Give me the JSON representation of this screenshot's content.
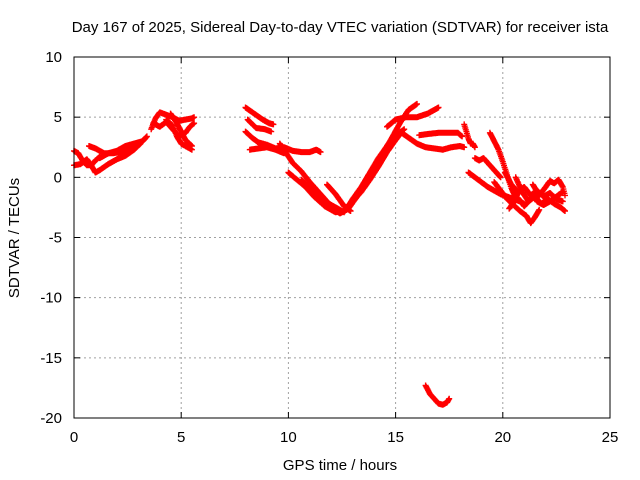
{
  "chart_data": {
    "type": "scatter",
    "title": "Day 167 of 2025, Sidereal Day-to-day VTEC variation (SDTVAR) for receiver ista",
    "xlabel": "GPS time / hours",
    "ylabel": "SDTVAR / TECUs",
    "xlim": [
      0,
      25
    ],
    "ylim": [
      -20,
      10
    ],
    "xticks": [
      "0",
      "5",
      "10",
      "15",
      "20",
      "25"
    ],
    "yticks": [
      "10",
      "5",
      "0",
      "-5",
      "-10",
      "-15",
      "-20"
    ],
    "grid": true,
    "marker": "plus",
    "color": "#ff0000",
    "segments": [
      {
        "name": "arc-01",
        "points": [
          [
            0.0,
            2.2
          ],
          [
            0.2,
            2.0
          ],
          [
            0.4,
            1.4
          ],
          [
            0.6,
            1.0
          ],
          [
            0.8,
            1.0
          ],
          [
            1.0,
            1.4
          ],
          [
            1.2,
            1.7
          ]
        ]
      },
      {
        "name": "arc-02",
        "points": [
          [
            0.0,
            1.0
          ],
          [
            0.3,
            1.1
          ],
          [
            0.6,
            1.5
          ],
          [
            0.8,
            1.0
          ],
          [
            1.0,
            0.4
          ],
          [
            1.2,
            0.6
          ],
          [
            1.6,
            1.1
          ],
          [
            2.0,
            1.5
          ],
          [
            2.4,
            1.8
          ],
          [
            2.8,
            2.3
          ],
          [
            3.1,
            2.8
          ]
        ]
      },
      {
        "name": "arc-03",
        "points": [
          [
            0.7,
            2.6
          ],
          [
            1.0,
            2.4
          ],
          [
            1.4,
            2.0
          ],
          [
            1.8,
            2.0
          ],
          [
            2.2,
            2.1
          ],
          [
            2.6,
            2.3
          ],
          [
            3.0,
            2.7
          ],
          [
            3.3,
            3.2
          ]
        ]
      },
      {
        "name": "arc-04",
        "points": [
          [
            1.2,
            1.6
          ],
          [
            1.6,
            2.0
          ],
          [
            2.0,
            2.2
          ],
          [
            2.4,
            2.6
          ],
          [
            2.8,
            2.8
          ],
          [
            3.2,
            3.0
          ],
          [
            3.4,
            3.4
          ]
        ]
      },
      {
        "name": "arc-05",
        "points": [
          [
            3.6,
            4.0
          ],
          [
            3.8,
            4.9
          ],
          [
            4.0,
            5.4
          ],
          [
            4.3,
            5.2
          ],
          [
            4.6,
            5.0
          ],
          [
            4.9,
            4.7
          ],
          [
            5.2,
            4.8
          ],
          [
            5.5,
            4.9
          ],
          [
            5.6,
            5.0
          ]
        ]
      },
      {
        "name": "arc-06",
        "points": [
          [
            3.7,
            4.5
          ],
          [
            4.0,
            4.2
          ],
          [
            4.3,
            4.6
          ],
          [
            4.6,
            4.0
          ],
          [
            4.9,
            3.4
          ],
          [
            5.2,
            3.7
          ],
          [
            5.4,
            4.2
          ],
          [
            5.6,
            4.5
          ]
        ]
      },
      {
        "name": "arc-07",
        "points": [
          [
            4.3,
            4.8
          ],
          [
            4.6,
            4.3
          ],
          [
            4.8,
            3.4
          ],
          [
            5.0,
            2.8
          ],
          [
            5.3,
            2.5
          ],
          [
            5.5,
            2.3
          ]
        ]
      },
      {
        "name": "arc-08",
        "points": [
          [
            4.5,
            5.3
          ],
          [
            4.8,
            4.5
          ],
          [
            5.0,
            3.8
          ],
          [
            5.2,
            3.1
          ],
          [
            5.5,
            2.6
          ]
        ]
      },
      {
        "name": "arc-09",
        "points": [
          [
            8.0,
            5.8
          ],
          [
            8.4,
            5.3
          ],
          [
            8.8,
            4.8
          ],
          [
            9.1,
            4.5
          ],
          [
            9.3,
            4.4
          ]
        ]
      },
      {
        "name": "arc-10",
        "points": [
          [
            8.1,
            4.8
          ],
          [
            8.5,
            4.1
          ],
          [
            8.9,
            4.0
          ],
          [
            9.2,
            3.8
          ]
        ]
      },
      {
        "name": "arc-11",
        "points": [
          [
            8.0,
            3.8
          ],
          [
            8.3,
            3.3
          ],
          [
            8.6,
            2.9
          ],
          [
            9.0,
            2.7
          ],
          [
            9.4,
            2.4
          ],
          [
            9.8,
            2.5
          ],
          [
            10.2,
            2.2
          ],
          [
            10.6,
            2.1
          ],
          [
            11.0,
            2.1
          ],
          [
            11.3,
            2.3
          ],
          [
            11.5,
            2.1
          ]
        ]
      },
      {
        "name": "arc-12",
        "points": [
          [
            8.2,
            2.3
          ],
          [
            8.6,
            2.4
          ],
          [
            9.0,
            2.5
          ],
          [
            9.4,
            2.3
          ],
          [
            9.8,
            2.0
          ]
        ]
      },
      {
        "name": "arc-13",
        "points": [
          [
            9.6,
            2.8
          ],
          [
            9.9,
            2.0
          ],
          [
            10.2,
            1.2
          ],
          [
            10.6,
            0.5
          ],
          [
            11.0,
            -0.4
          ],
          [
            11.5,
            -1.4
          ],
          [
            12.0,
            -2.4
          ],
          [
            12.4,
            -3.0
          ],
          [
            12.8,
            -2.6
          ],
          [
            13.2,
            -1.6
          ],
          [
            13.6,
            -0.4
          ],
          [
            14.0,
            0.8
          ],
          [
            14.4,
            2.0
          ],
          [
            14.8,
            3.2
          ],
          [
            15.2,
            4.5
          ],
          [
            15.6,
            5.6
          ],
          [
            16.0,
            6.1
          ]
        ]
      },
      {
        "name": "arc-14",
        "points": [
          [
            10.0,
            0.4
          ],
          [
            10.4,
            -0.2
          ],
          [
            10.8,
            -0.8
          ],
          [
            11.2,
            -1.6
          ],
          [
            11.7,
            -2.4
          ],
          [
            12.2,
            -2.9
          ],
          [
            12.6,
            -2.8
          ],
          [
            13.0,
            -2.0
          ],
          [
            13.4,
            -1.2
          ],
          [
            13.8,
            -0.2
          ],
          [
            14.2,
            0.9
          ],
          [
            14.6,
            2.1
          ],
          [
            15.0,
            3.1
          ],
          [
            15.3,
            3.8
          ]
        ]
      },
      {
        "name": "arc-15",
        "points": [
          [
            10.6,
            -0.2
          ],
          [
            11.0,
            -0.9
          ],
          [
            11.4,
            -1.6
          ],
          [
            11.8,
            -2.1
          ],
          [
            12.2,
            -2.5
          ],
          [
            12.6,
            -2.9
          ],
          [
            13.0,
            -1.8
          ],
          [
            13.4,
            -0.8
          ],
          [
            13.8,
            0.4
          ],
          [
            14.2,
            1.6
          ],
          [
            14.6,
            2.6
          ],
          [
            15.0,
            3.4
          ],
          [
            15.4,
            4.0
          ]
        ]
      },
      {
        "name": "arc-16",
        "points": [
          [
            11.8,
            -0.6
          ],
          [
            12.2,
            -1.4
          ],
          [
            12.6,
            -2.4
          ],
          [
            12.9,
            -2.8
          ]
        ]
      },
      {
        "name": "arc-17",
        "points": [
          [
            14.6,
            4.2
          ],
          [
            15.0,
            4.8
          ],
          [
            15.5,
            5.0
          ],
          [
            16.0,
            5.0
          ],
          [
            16.5,
            5.3
          ],
          [
            17.0,
            5.8
          ]
        ]
      },
      {
        "name": "arc-18",
        "points": [
          [
            15.2,
            3.8
          ],
          [
            15.6,
            3.3
          ],
          [
            16.0,
            2.8
          ],
          [
            16.4,
            2.5
          ],
          [
            16.8,
            2.4
          ],
          [
            17.2,
            2.3
          ],
          [
            17.6,
            2.5
          ],
          [
            18.0,
            2.6
          ],
          [
            18.2,
            2.5
          ]
        ]
      },
      {
        "name": "arc-19",
        "points": [
          [
            16.1,
            3.5
          ],
          [
            16.5,
            3.6
          ],
          [
            17.0,
            3.7
          ],
          [
            17.5,
            3.7
          ],
          [
            17.9,
            3.7
          ],
          [
            18.1,
            3.4
          ]
        ]
      },
      {
        "name": "arc-20",
        "points": [
          [
            16.4,
            -17.3
          ],
          [
            16.6,
            -18.0
          ],
          [
            16.8,
            -18.4
          ],
          [
            17.0,
            -18.8
          ],
          [
            17.2,
            -18.9
          ],
          [
            17.4,
            -18.7
          ],
          [
            17.5,
            -18.4
          ]
        ]
      },
      {
        "name": "arc-21",
        "points": [
          [
            18.2,
            4.4
          ],
          [
            18.3,
            3.8
          ],
          [
            18.4,
            3.2
          ],
          [
            18.5,
            2.8
          ],
          [
            18.6,
            2.8
          ],
          [
            18.7,
            2.5
          ]
        ]
      },
      {
        "name": "arc-22",
        "points": [
          [
            18.7,
            1.6
          ],
          [
            18.9,
            1.4
          ],
          [
            19.1,
            1.6
          ],
          [
            19.3,
            1.2
          ],
          [
            19.5,
            0.8
          ],
          [
            19.7,
            0.4
          ],
          [
            19.9,
            0.0
          ]
        ]
      },
      {
        "name": "arc-23",
        "points": [
          [
            18.4,
            0.4
          ],
          [
            18.7,
            0.0
          ],
          [
            19.0,
            -0.4
          ],
          [
            19.3,
            -0.8
          ],
          [
            19.6,
            -1.1
          ],
          [
            19.9,
            -1.4
          ],
          [
            20.2,
            -1.6
          ],
          [
            20.5,
            -1.8
          ],
          [
            20.8,
            -2.0
          ],
          [
            21.0,
            -2.2
          ]
        ]
      },
      {
        "name": "arc-24",
        "points": [
          [
            19.4,
            3.7
          ],
          [
            19.6,
            3.0
          ],
          [
            19.8,
            2.3
          ],
          [
            20.0,
            1.3
          ],
          [
            20.2,
            0.2
          ],
          [
            20.4,
            -0.9
          ],
          [
            20.6,
            -1.7
          ],
          [
            20.8,
            -1.0
          ]
        ]
      },
      {
        "name": "arc-25",
        "points": [
          [
            19.6,
            -0.4
          ],
          [
            19.9,
            -1.1
          ],
          [
            20.2,
            -1.8
          ],
          [
            20.5,
            -2.3
          ],
          [
            20.8,
            -2.8
          ],
          [
            21.1,
            -3.2
          ],
          [
            21.3,
            -3.8
          ],
          [
            21.5,
            -3.3
          ],
          [
            21.7,
            -2.7
          ]
        ]
      },
      {
        "name": "arc-26",
        "points": [
          [
            20.1,
            0.4
          ],
          [
            20.4,
            -0.6
          ],
          [
            20.7,
            -1.2
          ],
          [
            21.0,
            -0.8
          ],
          [
            21.3,
            -1.5
          ],
          [
            21.6,
            -1.1
          ],
          [
            21.9,
            -1.6
          ],
          [
            22.2,
            -1.3
          ],
          [
            22.5,
            -1.8
          ],
          [
            22.8,
            -2.0
          ]
        ]
      },
      {
        "name": "arc-27",
        "points": [
          [
            20.6,
            0.0
          ],
          [
            20.9,
            -1.2
          ],
          [
            21.2,
            -2.0
          ],
          [
            21.5,
            -1.6
          ],
          [
            21.8,
            -2.2
          ],
          [
            22.1,
            -1.8
          ],
          [
            22.4,
            -2.2
          ],
          [
            22.7,
            -2.5
          ],
          [
            22.9,
            -2.8
          ]
        ]
      },
      {
        "name": "arc-28",
        "points": [
          [
            21.4,
            -0.6
          ],
          [
            21.7,
            -1.5
          ],
          [
            22.0,
            -0.8
          ],
          [
            22.2,
            -0.3
          ],
          [
            22.4,
            -0.5
          ],
          [
            22.6,
            -0.2
          ],
          [
            22.8,
            -0.8
          ],
          [
            22.9,
            -1.5
          ]
        ]
      },
      {
        "name": "arc-29",
        "points": [
          [
            20.3,
            -2.6
          ],
          [
            20.5,
            -2.1
          ],
          [
            20.7,
            -1.7
          ],
          [
            21.0,
            -2.4
          ],
          [
            21.2,
            -2.0
          ],
          [
            21.4,
            -1.4
          ],
          [
            21.6,
            -2.0
          ],
          [
            21.9,
            -2.3
          ],
          [
            22.2,
            -2.0
          ],
          [
            22.5,
            -1.6
          ],
          [
            22.8,
            -1.2
          ]
        ]
      }
    ]
  }
}
